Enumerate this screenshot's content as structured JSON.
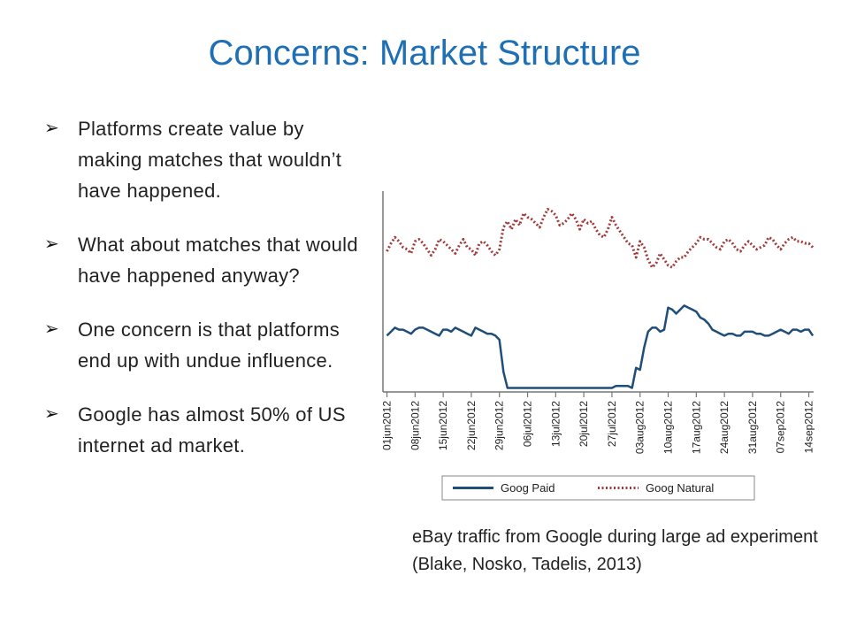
{
  "slide": {
    "title": "Concerns: Market Structure",
    "bullets": [
      "Platforms create value by making matches that wouldn’t have happened.",
      "What about matches that would have happened anyway?",
      "One concern is that platforms end up with undue influence.",
      "Google has almost 50% of US internet ad market."
    ],
    "caption": "eBay traffic from Google during large ad experiment (Blake, Nosko, Tadelis, 2013)"
  },
  "colors": {
    "title": "#1f6fb5",
    "paid": "#1f4e79",
    "natural": "#a33a3a"
  },
  "chart_data": {
    "type": "line",
    "title": "",
    "xlabel": "",
    "ylabel": "",
    "x_ticks": [
      "01jun2012",
      "08jun2012",
      "15jun2012",
      "22jun2012",
      "29jun2012",
      "06jul2012",
      "13jul2012",
      "20jul2012",
      "27jul2012",
      "03aug2012",
      "10aug2012",
      "17aug2012",
      "24aug2012",
      "31aug2012",
      "07sep2012",
      "14sep2012"
    ],
    "ylim": [
      0,
      100
    ],
    "grid": false,
    "legend": "bottom",
    "series": [
      {
        "name": "Goog Paid",
        "style": "solid",
        "points": [
          [
            "01jun2012",
            28
          ],
          [
            "02jun2012",
            30
          ],
          [
            "03jun2012",
            32
          ],
          [
            "04jun2012",
            31
          ],
          [
            "05jun2012",
            31
          ],
          [
            "06jun2012",
            30
          ],
          [
            "07jun2012",
            29
          ],
          [
            "08jun2012",
            31
          ],
          [
            "09jun2012",
            32
          ],
          [
            "10jun2012",
            32
          ],
          [
            "11jun2012",
            31
          ],
          [
            "12jun2012",
            30
          ],
          [
            "13jun2012",
            29
          ],
          [
            "14jun2012",
            28
          ],
          [
            "15jun2012",
            31
          ],
          [
            "16jun2012",
            31
          ],
          [
            "17jun2012",
            30
          ],
          [
            "18jun2012",
            32
          ],
          [
            "19jun2012",
            31
          ],
          [
            "20jun2012",
            30
          ],
          [
            "21jun2012",
            29
          ],
          [
            "22jun2012",
            28
          ],
          [
            "23jun2012",
            32
          ],
          [
            "24jun2012",
            31
          ],
          [
            "25jun2012",
            30
          ],
          [
            "26jun2012",
            29
          ],
          [
            "27jun2012",
            29
          ],
          [
            "28jun2012",
            28
          ],
          [
            "29jun2012",
            26
          ],
          [
            "30jun2012",
            10
          ],
          [
            "01jul2012",
            2
          ],
          [
            "02jul2012",
            2
          ],
          [
            "03jul2012",
            2
          ],
          [
            "04jul2012",
            2
          ],
          [
            "05jul2012",
            2
          ],
          [
            "06jul2012",
            2
          ],
          [
            "07jul2012",
            2
          ],
          [
            "08jul2012",
            2
          ],
          [
            "09jul2012",
            2
          ],
          [
            "10jul2012",
            2
          ],
          [
            "11jul2012",
            2
          ],
          [
            "12jul2012",
            2
          ],
          [
            "13jul2012",
            2
          ],
          [
            "14jul2012",
            2
          ],
          [
            "15jul2012",
            2
          ],
          [
            "16jul2012",
            2
          ],
          [
            "17jul2012",
            2
          ],
          [
            "18jul2012",
            2
          ],
          [
            "19jul2012",
            2
          ],
          [
            "20jul2012",
            2
          ],
          [
            "21jul2012",
            2
          ],
          [
            "22jul2012",
            2
          ],
          [
            "23jul2012",
            2
          ],
          [
            "24jul2012",
            2
          ],
          [
            "25jul2012",
            2
          ],
          [
            "26jul2012",
            2
          ],
          [
            "27jul2012",
            2
          ],
          [
            "28jul2012",
            3
          ],
          [
            "29jul2012",
            3
          ],
          [
            "30jul2012",
            3
          ],
          [
            "31jul2012",
            3
          ],
          [
            "01aug2012",
            2
          ],
          [
            "02aug2012",
            12
          ],
          [
            "03aug2012",
            11
          ],
          [
            "04aug2012",
            22
          ],
          [
            "05aug2012",
            30
          ],
          [
            "06aug2012",
            32
          ],
          [
            "07aug2012",
            32
          ],
          [
            "08aug2012",
            30
          ],
          [
            "09aug2012",
            31
          ],
          [
            "10aug2012",
            42
          ],
          [
            "11aug2012",
            41
          ],
          [
            "12aug2012",
            39
          ],
          [
            "13aug2012",
            41
          ],
          [
            "14aug2012",
            43
          ],
          [
            "15aug2012",
            42
          ],
          [
            "16aug2012",
            41
          ],
          [
            "17aug2012",
            40
          ],
          [
            "18aug2012",
            37
          ],
          [
            "19aug2012",
            36
          ],
          [
            "20aug2012",
            34
          ],
          [
            "21aug2012",
            31
          ],
          [
            "22aug2012",
            30
          ],
          [
            "23aug2012",
            29
          ],
          [
            "24aug2012",
            28
          ],
          [
            "25aug2012",
            29
          ],
          [
            "26aug2012",
            29
          ],
          [
            "27aug2012",
            28
          ],
          [
            "28aug2012",
            28
          ],
          [
            "29aug2012",
            30
          ],
          [
            "30aug2012",
            30
          ],
          [
            "31aug2012",
            30
          ],
          [
            "01sep2012",
            29
          ],
          [
            "02sep2012",
            29
          ],
          [
            "03sep2012",
            28
          ],
          [
            "04sep2012",
            28
          ],
          [
            "05sep2012",
            29
          ],
          [
            "06sep2012",
            30
          ],
          [
            "07sep2012",
            31
          ],
          [
            "08sep2012",
            30
          ],
          [
            "09sep2012",
            29
          ],
          [
            "10sep2012",
            31
          ],
          [
            "11sep2012",
            31
          ],
          [
            "12sep2012",
            30
          ],
          [
            "13sep2012",
            31
          ],
          [
            "14sep2012",
            31
          ],
          [
            "15sep2012",
            28
          ]
        ]
      },
      {
        "name": "Goog Natural",
        "style": "dotted",
        "points": [
          [
            "01jun2012",
            70
          ],
          [
            "02jun2012",
            74
          ],
          [
            "03jun2012",
            77
          ],
          [
            "04jun2012",
            75
          ],
          [
            "05jun2012",
            72
          ],
          [
            "06jun2012",
            71
          ],
          [
            "07jun2012",
            69
          ],
          [
            "08jun2012",
            75
          ],
          [
            "09jun2012",
            76
          ],
          [
            "10jun2012",
            74
          ],
          [
            "11jun2012",
            71
          ],
          [
            "12jun2012",
            68
          ],
          [
            "13jun2012",
            71
          ],
          [
            "14jun2012",
            76
          ],
          [
            "15jun2012",
            75
          ],
          [
            "16jun2012",
            73
          ],
          [
            "17jun2012",
            71
          ],
          [
            "18jun2012",
            69
          ],
          [
            "19jun2012",
            73
          ],
          [
            "20jun2012",
            76
          ],
          [
            "21jun2012",
            72
          ],
          [
            "22jun2012",
            71
          ],
          [
            "23jun2012",
            68
          ],
          [
            "24jun2012",
            74
          ],
          [
            "25jun2012",
            75
          ],
          [
            "26jun2012",
            73
          ],
          [
            "27jun2012",
            70
          ],
          [
            "28jun2012",
            68
          ],
          [
            "29jun2012",
            71
          ],
          [
            "30jun2012",
            82
          ],
          [
            "01jul2012",
            85
          ],
          [
            "02jul2012",
            81
          ],
          [
            "03jul2012",
            86
          ],
          [
            "04jul2012",
            83
          ],
          [
            "05jul2012",
            89
          ],
          [
            "06jul2012",
            87
          ],
          [
            "07jul2012",
            86
          ],
          [
            "08jul2012",
            84
          ],
          [
            "09jul2012",
            82
          ],
          [
            "10jul2012",
            87
          ],
          [
            "11jul2012",
            91
          ],
          [
            "12jul2012",
            90
          ],
          [
            "13jul2012",
            88
          ],
          [
            "14jul2012",
            83
          ],
          [
            "15jul2012",
            84
          ],
          [
            "16jul2012",
            86
          ],
          [
            "17jul2012",
            89
          ],
          [
            "18jul2012",
            86
          ],
          [
            "19jul2012",
            81
          ],
          [
            "20jul2012",
            86
          ],
          [
            "21jul2012",
            84
          ],
          [
            "22jul2012",
            85
          ],
          [
            "23jul2012",
            81
          ],
          [
            "24jul2012",
            78
          ],
          [
            "25jul2012",
            77
          ],
          [
            "26jul2012",
            81
          ],
          [
            "27jul2012",
            87
          ],
          [
            "28jul2012",
            83
          ],
          [
            "29jul2012",
            80
          ],
          [
            "30jul2012",
            77
          ],
          [
            "31jul2012",
            74
          ],
          [
            "01aug2012",
            73
          ],
          [
            "02aug2012",
            67
          ],
          [
            "03aug2012",
            75
          ],
          [
            "04aug2012",
            72
          ],
          [
            "05aug2012",
            66
          ],
          [
            "06aug2012",
            62
          ],
          [
            "07aug2012",
            64
          ],
          [
            "08aug2012",
            69
          ],
          [
            "09aug2012",
            66
          ],
          [
            "10aug2012",
            63
          ],
          [
            "11aug2012",
            62
          ],
          [
            "12aug2012",
            65
          ],
          [
            "13aug2012",
            67
          ],
          [
            "14aug2012",
            67
          ],
          [
            "15aug2012",
            70
          ],
          [
            "16aug2012",
            72
          ],
          [
            "17aug2012",
            74
          ],
          [
            "18aug2012",
            77
          ],
          [
            "19aug2012",
            76
          ],
          [
            "20aug2012",
            76
          ],
          [
            "21aug2012",
            74
          ],
          [
            "22aug2012",
            72
          ],
          [
            "23aug2012",
            71
          ],
          [
            "24aug2012",
            75
          ],
          [
            "25aug2012",
            76
          ],
          [
            "26aug2012",
            74
          ],
          [
            "27aug2012",
            71
          ],
          [
            "28aug2012",
            70
          ],
          [
            "29aug2012",
            73
          ],
          [
            "30aug2012",
            75
          ],
          [
            "31aug2012",
            73
          ],
          [
            "01sep2012",
            71
          ],
          [
            "02sep2012",
            72
          ],
          [
            "03sep2012",
            73
          ],
          [
            "04sep2012",
            77
          ],
          [
            "05sep2012",
            76
          ],
          [
            "06sep2012",
            73
          ],
          [
            "07sep2012",
            71
          ],
          [
            "08sep2012",
            74
          ],
          [
            "09sep2012",
            76
          ],
          [
            "10sep2012",
            77
          ],
          [
            "11sep2012",
            75
          ],
          [
            "12sep2012",
            75
          ],
          [
            "13sep2012",
            74
          ],
          [
            "14sep2012",
            74
          ],
          [
            "15sep2012",
            72
          ]
        ]
      }
    ]
  }
}
